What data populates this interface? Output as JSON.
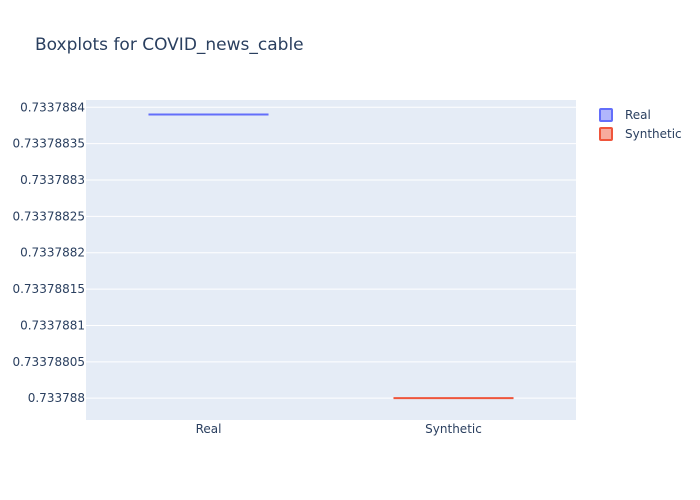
{
  "chart_data": {
    "type": "box",
    "title": "Boxplots for COVID_news_cable",
    "xlabel": "",
    "ylabel": "",
    "categories": [
      "Real",
      "Synthetic"
    ],
    "series": [
      {
        "name": "Real",
        "values": [
          0.73378839
        ],
        "color": "#636efa"
      },
      {
        "name": "Synthetic",
        "values": [
          0.733788
        ],
        "color": "#ef553b"
      }
    ],
    "yticks": [
      0.733788,
      0.73378805,
      0.7337881,
      0.73378815,
      0.7337882,
      0.73378825,
      0.7337883,
      0.73378835,
      0.7337884
    ],
    "ytick_labels": [
      "0.733788",
      "0.73378805",
      "0.7337881",
      "0.73378815",
      "0.7337882",
      "0.73378825",
      "0.7337883",
      "0.73378835",
      "0.7337884"
    ],
    "ylim": [
      0.73378797,
      0.73378841
    ],
    "grid": true,
    "legend_position": "top-right",
    "plot_bg": "#e5ecf6",
    "gridline_color": "#ffffff"
  }
}
